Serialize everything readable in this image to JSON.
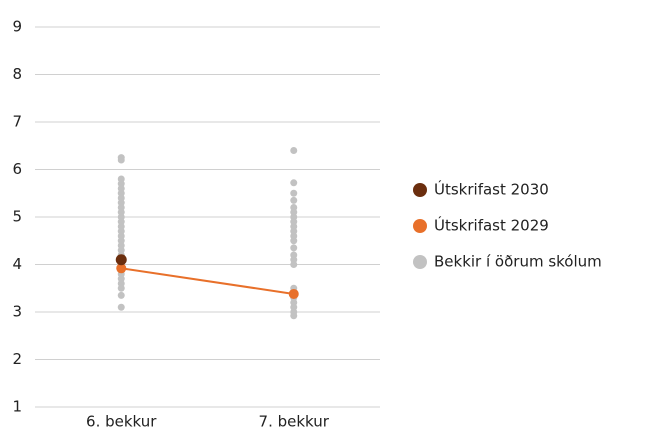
{
  "chart_data": {
    "type": "strip",
    "categories": [
      "6. bekkur",
      "7. bekkur"
    ],
    "ylim": [
      1,
      9
    ],
    "yticks": [
      1,
      2,
      3,
      4,
      5,
      6,
      7,
      8,
      9
    ],
    "grid": true,
    "legend": "right",
    "series": [
      {
        "name": "Útskrifast 2030",
        "color": "#6b2e0e",
        "type": "scatter",
        "values": [
          [
            4.1
          ],
          []
        ]
      },
      {
        "name": "Útskrifast 2029",
        "color": "#e8702a",
        "type": "line",
        "values": [
          3.92,
          3.38
        ]
      },
      {
        "name": "Bekkir í öðrum skólum",
        "color": "#c2c2c2",
        "type": "scatter",
        "values": [
          [
            3.1,
            3.35,
            3.5,
            3.6,
            3.7,
            3.8,
            3.9,
            3.95,
            4.0,
            4.05,
            4.1,
            4.15,
            4.2,
            4.3,
            4.4,
            4.5,
            4.6,
            4.7,
            4.8,
            4.9,
            5.0,
            5.1,
            5.2,
            5.3,
            5.4,
            5.5,
            5.6,
            5.7,
            5.8,
            6.2,
            6.25
          ],
          [
            2.92,
            3.0,
            3.1,
            3.2,
            3.3,
            3.4,
            3.5,
            4.0,
            4.1,
            4.2,
            4.35,
            4.5,
            4.6,
            4.7,
            4.8,
            4.9,
            5.0,
            5.1,
            5.2,
            5.35,
            5.5,
            5.72,
            6.4
          ]
        ]
      }
    ]
  }
}
